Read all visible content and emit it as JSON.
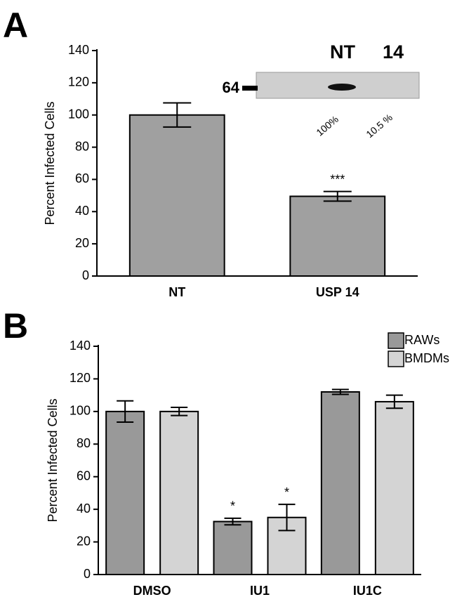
{
  "chart_data": [
    {
      "type": "bar",
      "panel_label": "A",
      "ylabel": "Percent Infected Cells",
      "categories": [
        "NT",
        "USP 14"
      ],
      "values": [
        100,
        49.5
      ],
      "errors": [
        7.5,
        3
      ],
      "significance": [
        null,
        "***"
      ],
      "color": "#a0a0a0",
      "ylim": [
        0,
        140
      ],
      "yticks": [
        0,
        20,
        40,
        60,
        80,
        100,
        120,
        140
      ],
      "inset": {
        "lanes": [
          "NT",
          "14"
        ],
        "marker": "64",
        "percent_labels": [
          "100%",
          "10.5 %"
        ]
      }
    },
    {
      "type": "bar",
      "panel_label": "B",
      "ylabel": "Percent Infected Cells",
      "categories": [
        "DMSO",
        "IU1",
        "IU1C"
      ],
      "series": [
        {
          "name": "RAWs",
          "color": "#999999",
          "values": [
            100,
            32.5,
            112
          ],
          "errors": [
            6.5,
            2,
            1.5
          ],
          "significance": [
            null,
            "*",
            null
          ]
        },
        {
          "name": "BMDMs",
          "color": "#d4d4d4",
          "values": [
            100,
            35,
            106
          ],
          "errors": [
            2.5,
            8,
            4
          ],
          "significance": [
            null,
            "*",
            null
          ]
        }
      ],
      "ylim": [
        0,
        140
      ],
      "yticks": [
        0,
        20,
        40,
        60,
        80,
        100,
        120,
        140
      ],
      "legend": "top-right"
    }
  ]
}
